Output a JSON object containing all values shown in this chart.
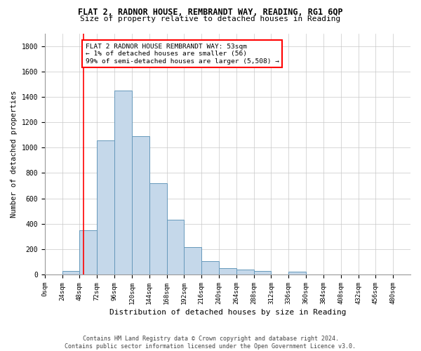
{
  "title": "FLAT 2, RADNOR HOUSE, REMBRANDT WAY, READING, RG1 6QP",
  "subtitle": "Size of property relative to detached houses in Reading",
  "xlabel": "Distribution of detached houses by size in Reading",
  "ylabel": "Number of detached properties",
  "bar_color": "#c5d8ea",
  "bar_edge_color": "#6699bb",
  "categories": [
    "0sqm",
    "24sqm",
    "48sqm",
    "72sqm",
    "96sqm",
    "120sqm",
    "144sqm",
    "168sqm",
    "192sqm",
    "216sqm",
    "240sqm",
    "264sqm",
    "288sqm",
    "312sqm",
    "336sqm",
    "360sqm",
    "384sqm",
    "408sqm",
    "432sqm",
    "456sqm",
    "480sqm"
  ],
  "values": [
    0,
    30,
    350,
    1055,
    1450,
    1090,
    720,
    430,
    215,
    105,
    50,
    40,
    30,
    0,
    20,
    0,
    0,
    0,
    0,
    0,
    0
  ],
  "ylim": [
    0,
    1900
  ],
  "yticks": [
    0,
    200,
    400,
    600,
    800,
    1000,
    1200,
    1400,
    1600,
    1800
  ],
  "property_size": 53,
  "annotation_line1": "FLAT 2 RADNOR HOUSE REMBRANDT WAY: 53sqm",
  "annotation_line2": "← 1% of detached houses are smaller (56)",
  "annotation_line3": "99% of semi-detached houses are larger (5,508) →",
  "annotation_box_color": "white",
  "annotation_box_edge_color": "red",
  "red_line_color": "red",
  "footer_line1": "Contains HM Land Registry data © Crown copyright and database right 2024.",
  "footer_line2": "Contains public sector information licensed under the Open Government Licence v3.0.",
  "bin_width": 24,
  "grid_color": "#c8c8c8",
  "bg_color": "white"
}
